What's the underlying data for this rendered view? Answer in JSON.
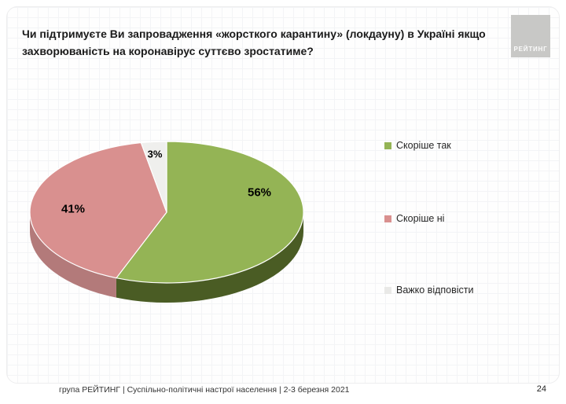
{
  "slide": {
    "title": "Чи підтримуєте Ви запровадження «жорсткого карантину» (локдауну)  в Україні якщо захворюваність на коронавірус суттєво зростатиме?",
    "logo_text": "РЕЙТИНГ",
    "footer": "група РЕЙТИНГ | Суспільно-політичні настрої населення  | 2-3 березня 2021",
    "page_number": "24"
  },
  "chart_data": {
    "type": "pie",
    "style": "3d",
    "title": "Чи підтримуєте Ви запровадження «жорсткого карантину» (локдауну) в Україні якщо захворюваність на коронавірус суттєво зростатиме?",
    "labels": [
      "Скоріше так",
      "Скоріше ні",
      "Важко відповісти"
    ],
    "values": [
      56,
      41,
      3
    ],
    "value_labels": [
      "56%",
      "41%",
      "3%"
    ],
    "colors_top": [
      "#94b455",
      "#d9908f",
      "#efefed"
    ],
    "colors_side": [
      "#4a5c24",
      "#b37a7a",
      "#d8d8d6"
    ],
    "start_angle": "top",
    "direction": "clockwise",
    "legend_position": "right",
    "legend_swatch_colors": [
      "#94b455",
      "#d9908f",
      "#e9e9e7"
    ]
  }
}
